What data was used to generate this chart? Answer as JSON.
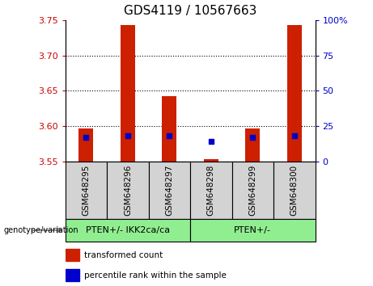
{
  "title": "GDS4119 / 10567663",
  "samples": [
    "GSM648295",
    "GSM648296",
    "GSM648297",
    "GSM648298",
    "GSM648299",
    "GSM648300"
  ],
  "transformed_counts": [
    3.597,
    3.743,
    3.643,
    3.553,
    3.597,
    3.743
  ],
  "percentile_ranks": [
    17,
    18,
    18,
    14,
    17,
    18
  ],
  "ylim_left": [
    3.55,
    3.75
  ],
  "ylim_right": [
    0,
    100
  ],
  "yticks_left": [
    3.55,
    3.6,
    3.65,
    3.7,
    3.75
  ],
  "yticks_right": [
    0,
    25,
    50,
    75,
    100
  ],
  "ytick_labels_right": [
    "0",
    "25",
    "50",
    "75",
    "100%"
  ],
  "groups": [
    {
      "label": "PTEN+/- IKK2ca/ca",
      "start": 0,
      "end": 2,
      "color": "#90EE90"
    },
    {
      "label": "PTEN+/-",
      "start": 3,
      "end": 5,
      "color": "#90EE90"
    }
  ],
  "bar_color": "#CC2000",
  "dot_color": "#0000CC",
  "base_value": 3.55,
  "genotype_label": "genotype/variation",
  "legend_transformed": "transformed count",
  "legend_percentile": "percentile rank within the sample",
  "bar_width": 0.35,
  "tick_label_color_left": "#CC0000",
  "tick_label_color_right": "#0000CC",
  "grid_color": "black",
  "background_color": "#FFFFFF",
  "sample_box_color": "#D3D3D3"
}
